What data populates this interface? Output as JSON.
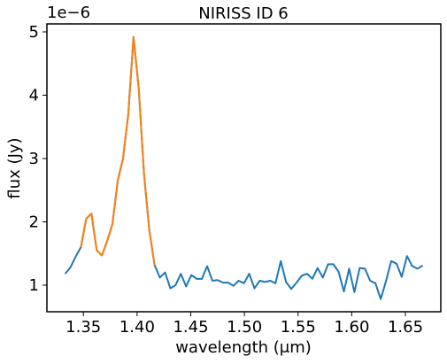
{
  "chart_data": {
    "type": "line",
    "title": "NIRISS ID 6",
    "xlabel": "wavelength (μm)",
    "ylabel": "flux (Jy)",
    "y_offset_label": "1e−6",
    "x": [
      1.333,
      1.3379,
      1.3428,
      1.3477,
      1.3526,
      1.3575,
      1.3624,
      1.3673,
      1.3722,
      1.3771,
      1.382,
      1.3869,
      1.3918,
      1.3967,
      1.4016,
      1.4065,
      1.4114,
      1.4163,
      1.4212,
      1.4261,
      1.431,
      1.4359,
      1.4408,
      1.4457,
      1.4506,
      1.4555,
      1.4604,
      1.4653,
      1.4702,
      1.4751,
      1.48,
      1.4849,
      1.4898,
      1.4947,
      1.4996,
      1.5045,
      1.5094,
      1.5143,
      1.5192,
      1.5241,
      1.529,
      1.5339,
      1.5388,
      1.5437,
      1.5486,
      1.5535,
      1.5584,
      1.5633,
      1.5682,
      1.5731,
      1.578,
      1.5829,
      1.5878,
      1.5927,
      1.5976,
      1.6025,
      1.6074,
      1.6123,
      1.6172,
      1.6221,
      1.627,
      1.6319,
      1.6368,
      1.6417,
      1.6466,
      1.6515,
      1.6564,
      1.6613,
      1.6662
    ],
    "series": [
      {
        "color": "#1f77b4",
        "values": [
          1.18,
          1.28,
          1.45,
          1.6,
          2.05,
          2.13,
          1.55,
          1.47,
          1.7,
          1.97,
          2.65,
          3.0,
          3.7,
          4.92,
          4.1,
          2.75,
          1.87,
          1.32,
          1.12,
          1.2,
          0.95,
          1.0,
          1.18,
          0.98,
          1.16,
          1.1,
          1.1,
          1.3,
          1.07,
          1.08,
          1.04,
          1.04,
          0.99,
          1.07,
          1.03,
          1.18,
          0.95,
          1.07,
          1.05,
          1.07,
          1.03,
          1.38,
          1.05,
          0.94,
          1.04,
          1.15,
          1.18,
          1.1,
          1.27,
          1.12,
          1.33,
          1.33,
          1.21,
          0.9,
          1.26,
          0.89,
          1.27,
          1.26,
          1.07,
          1.03,
          0.78,
          1.06,
          1.38,
          1.34,
          1.13,
          1.46,
          1.3,
          1.26,
          1.31
        ]
      },
      {
        "color": "#ff7f0e",
        "values": [
          null,
          null,
          null,
          1.6,
          2.05,
          2.13,
          1.55,
          1.47,
          1.7,
          1.97,
          2.65,
          3.0,
          3.7,
          4.92,
          4.1,
          2.75,
          1.87,
          1.32,
          null,
          null,
          null,
          null,
          null,
          null,
          null,
          null,
          null,
          null,
          null,
          null,
          null,
          null,
          null,
          null,
          null,
          null,
          null,
          null,
          null,
          null,
          null,
          null,
          null,
          null,
          null,
          null,
          null,
          null,
          null,
          null,
          null,
          null,
          null,
          null,
          null,
          null,
          null,
          null,
          null,
          null,
          null,
          null,
          null,
          null,
          null,
          null,
          null,
          null,
          null
        ]
      }
    ],
    "xlim": [
      1.316,
      1.683
    ],
    "ylim": [
      0.58,
      5.126
    ],
    "xticks": [
      1.35,
      {
        "value": 1.4,
        "label": "1.40"
      },
      1.45,
      {
        "value": 1.5,
        "label": "1.50"
      },
      1.55,
      {
        "value": 1.6,
        "label": "1.60"
      },
      1.65
    ],
    "yticks": [
      1,
      2,
      3,
      4,
      5
    ],
    "grid": false
  }
}
